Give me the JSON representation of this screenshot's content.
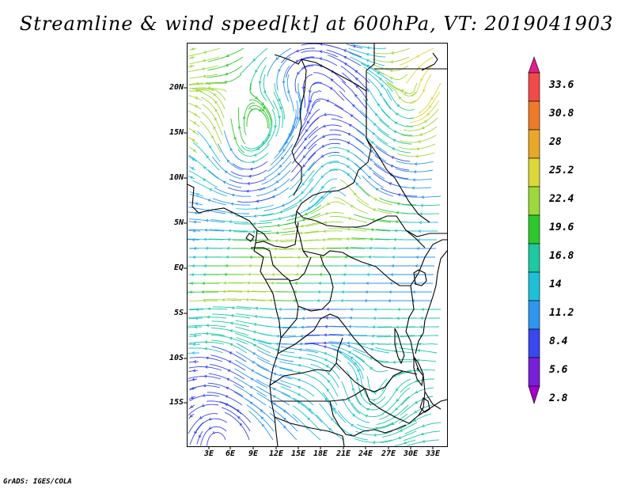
{
  "title": "Streamline & wind speed[kt] at 600hPa, VT: 2019041903",
  "footer": "GrADS: IGES/COLA",
  "map": {
    "lat_labels": [
      "20N",
      "15N",
      "10N",
      "5N",
      "EQ",
      "5S",
      "10S",
      "15S"
    ],
    "lon_labels": [
      "3E",
      "6E",
      "9E",
      "12E",
      "15E",
      "18E",
      "21E",
      "24E",
      "27E",
      "30E",
      "33E"
    ],
    "extent": {
      "lon_min": 0,
      "lon_max": 34.5,
      "lat_min": -19.8,
      "lat_max": 24.8
    }
  },
  "colorbar": {
    "labels": [
      "33.6",
      "30.8",
      "28",
      "25.2",
      "22.4",
      "19.6",
      "16.8",
      "14",
      "11.2",
      "8.4",
      "5.6",
      "2.8"
    ],
    "colors": [
      "#e01e8c",
      "#f04a4a",
      "#ee7b2a",
      "#e8a828",
      "#dcd83a",
      "#9ed83c",
      "#2ec82e",
      "#1ec8a0",
      "#1ec0d8",
      "#2e96ee",
      "#3a46ee",
      "#7820d8",
      "#a000c8"
    ]
  }
}
